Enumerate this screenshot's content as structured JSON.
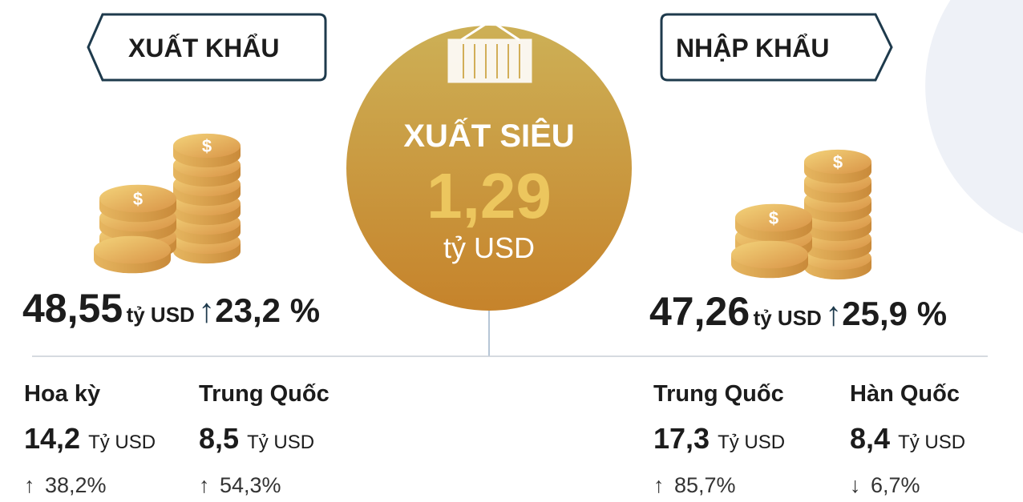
{
  "export": {
    "label": "XUẤT KHẨU",
    "value": "48,55",
    "unit": "tỷ USD",
    "growth": "23,2 %",
    "partners": [
      {
        "name": "Hoa kỳ",
        "value": "14,2",
        "unit": "Tỷ USD",
        "change": "38,2%"
      },
      {
        "name": "Trung Quốc",
        "value": "8,5",
        "unit": "Tỷ USD",
        "change": "54,3%"
      }
    ]
  },
  "surplus": {
    "label": "XUẤT SIÊU",
    "value": "1,29",
    "unit": "tỷ USD"
  },
  "import": {
    "label": "NHẬP KHẨU",
    "value": "47,26",
    "unit": "tỷ USD",
    "growth": "25,9 %",
    "partners": [
      {
        "name": "Trung Quốc",
        "value": "17,3",
        "unit": "Tỷ USD",
        "change": "85,7%"
      },
      {
        "name": "Hàn Quốc",
        "value": "8,4",
        "unit": "Tỷ USD",
        "change": "6,7%"
      }
    ]
  }
}
